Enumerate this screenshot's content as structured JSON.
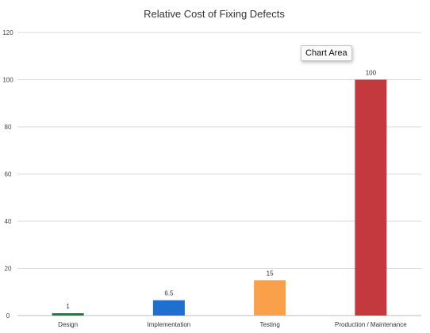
{
  "chart_data": {
    "type": "bar",
    "title": "Relative Cost of Fixing Defects",
    "categories": [
      "Design",
      "Implementation",
      "Testing",
      "Production / Maintenance"
    ],
    "values": [
      1,
      6.5,
      15,
      100
    ],
    "data_labels": [
      "1",
      "6.5",
      "15",
      "100"
    ],
    "colors": [
      "#1e7d45",
      "#1f6fcf",
      "#f9a04b",
      "#c3393d"
    ],
    "ylim": [
      0,
      120
    ],
    "yticks": [
      0,
      20,
      40,
      60,
      80,
      100,
      120
    ],
    "grid": true,
    "legend": "none",
    "xlabel": "",
    "ylabel": ""
  },
  "tooltip": {
    "text": "Chart Area"
  }
}
